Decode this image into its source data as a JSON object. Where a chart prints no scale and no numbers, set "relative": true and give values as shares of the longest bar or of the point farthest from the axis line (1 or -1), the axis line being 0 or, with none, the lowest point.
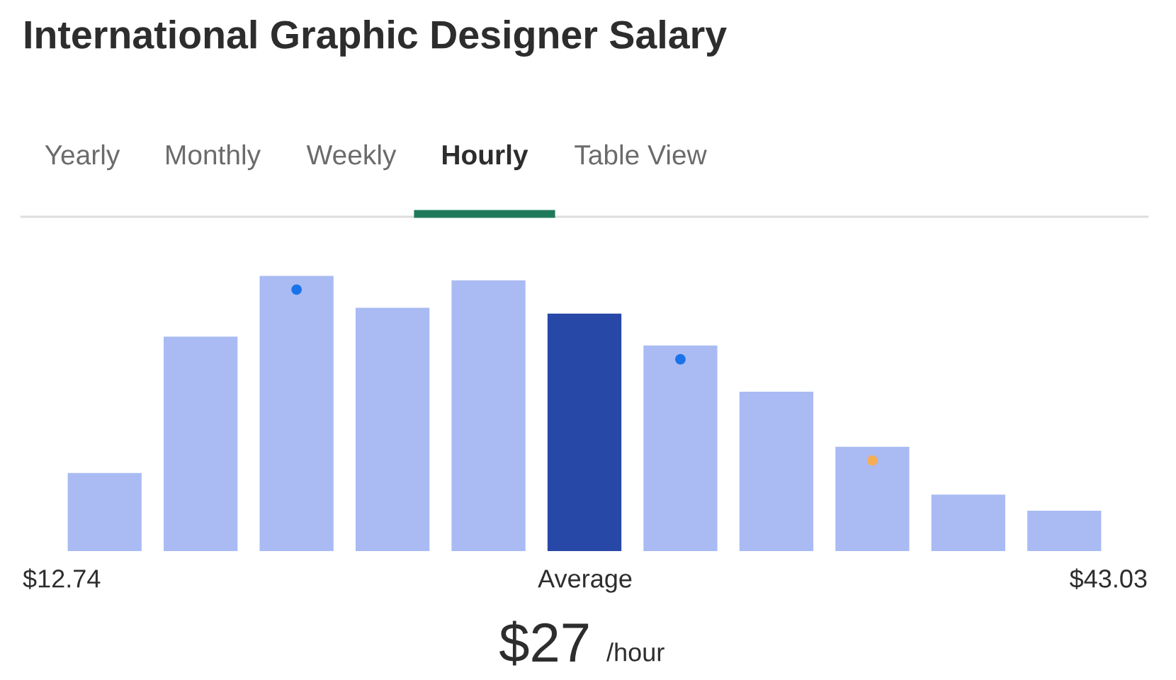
{
  "chart_data": {
    "type": "bar",
    "title": "International Graphic Designer Salary",
    "relative": true,
    "categories": [
      null,
      null,
      null,
      null,
      null,
      null,
      null,
      null,
      null,
      null,
      null
    ],
    "series": [
      {
        "colors": [
          "#aabbf3",
          "#aabbf3",
          "#aabbf3",
          "#aabbf3",
          "#aabbf3",
          "#2748a6",
          "#aabbf3",
          "#aabbf3",
          "#aabbf3",
          "#aabbf3",
          "#aabbf3"
        ],
        "values": [
          0.284,
          0.779,
          1,
          0.884,
          0.984,
          0.863,
          0.747,
          0.579,
          0.379,
          0.205,
          0.147
        ]
      }
    ],
    "annotations": [
      "Yearly",
      "Monthly",
      "Weekly",
      "Hourly",
      "Table View",
      "$12.74",
      "Average",
      "$43.03",
      "$27",
      "/hour"
    ]
  }
}
